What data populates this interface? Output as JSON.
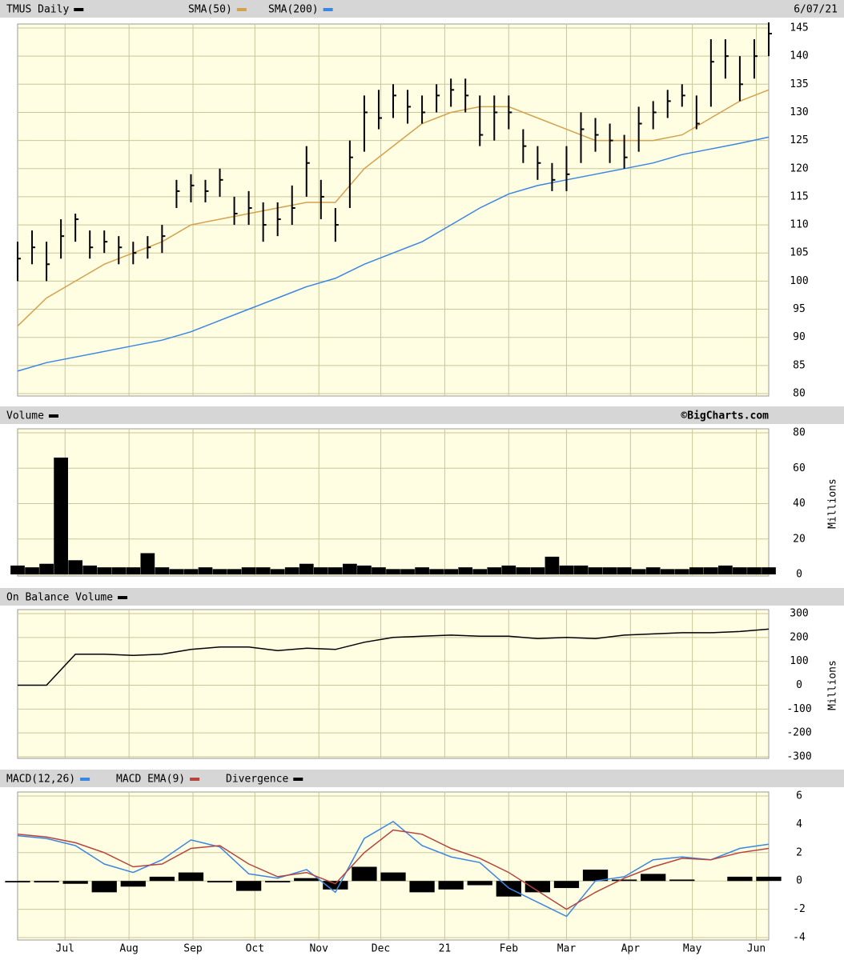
{
  "chart_data": [
    {
      "type": "ohlc",
      "title": "TMUS Daily",
      "date": "6/07/21",
      "color": "#000000",
      "xlim": [
        0,
        364
      ],
      "x": [
        0,
        7,
        14,
        21,
        28,
        35,
        42,
        49,
        56,
        63,
        70,
        77,
        84,
        91,
        98,
        105,
        112,
        119,
        126,
        133,
        140,
        147,
        154,
        161,
        168,
        175,
        182,
        189,
        196,
        203,
        210,
        217,
        224,
        231,
        238,
        245,
        252,
        259,
        266,
        273,
        280,
        287,
        294,
        301,
        308,
        315,
        322,
        329,
        336,
        343,
        350,
        357,
        364
      ],
      "high": [
        107,
        109,
        107,
        111,
        112,
        109,
        109,
        108,
        107,
        108,
        110,
        118,
        119,
        118,
        120,
        115,
        116,
        114,
        114,
        117,
        124,
        118,
        113,
        125,
        133,
        134,
        135,
        134,
        133,
        135,
        136,
        136,
        133,
        133,
        133,
        127,
        124,
        121,
        124,
        130,
        129,
        128,
        126,
        131,
        132,
        134,
        135,
        133,
        143,
        143,
        140,
        143,
        146
      ],
      "low": [
        100,
        103,
        100,
        104,
        107,
        104,
        105,
        103,
        103,
        104,
        105,
        113,
        114,
        114,
        115,
        110,
        110,
        107,
        108,
        110,
        115,
        111,
        107,
        113,
        123,
        127,
        129,
        128,
        128,
        130,
        131,
        130,
        124,
        125,
        127,
        121,
        118,
        116,
        116,
        121,
        123,
        121,
        120,
        123,
        127,
        129,
        131,
        127,
        131,
        136,
        132,
        136,
        140
      ],
      "close": [
        104,
        106,
        103,
        108,
        111,
        106,
        107,
        106,
        105,
        106,
        108,
        116,
        117,
        116,
        118,
        112,
        113,
        110,
        111,
        113,
        121,
        115,
        110,
        122,
        130,
        129,
        133,
        131,
        130,
        133,
        134,
        133,
        126,
        130,
        130,
        124,
        121,
        118,
        119,
        127,
        126,
        125,
        122,
        128,
        130,
        132,
        133,
        128,
        139,
        140,
        135,
        140,
        144
      ],
      "series": [
        {
          "name": "SMA(50)",
          "color": "#d4a24c",
          "x": [
            0,
            14,
            28,
            42,
            56,
            70,
            84,
            98,
            112,
            126,
            140,
            154,
            168,
            182,
            196,
            210,
            224,
            238,
            252,
            266,
            280,
            294,
            308,
            322,
            336,
            350,
            364
          ],
          "values": [
            92,
            97,
            100,
            103,
            105,
            107,
            110,
            111,
            112,
            113,
            114,
            114,
            120,
            124,
            128,
            130,
            131,
            131,
            129,
            127,
            125,
            125,
            125,
            126,
            129,
            132,
            134
          ]
        },
        {
          "name": "SMA(200)",
          "color": "#3a86e0",
          "x": [
            0,
            14,
            28,
            42,
            56,
            70,
            84,
            98,
            112,
            126,
            140,
            154,
            168,
            182,
            196,
            210,
            224,
            238,
            252,
            266,
            280,
            294,
            308,
            322,
            336,
            350,
            364
          ],
          "values": [
            84,
            85.5,
            86.5,
            87.5,
            88.5,
            89.5,
            91,
            93,
            95,
            97,
            99,
            100.5,
            103,
            105,
            107,
            110,
            113,
            115.5,
            117,
            118,
            119,
            120,
            121,
            122.5,
            123.5,
            124.5,
            125.6
          ]
        }
      ],
      "ylim": [
        80,
        145
      ],
      "yticks": [
        80,
        85,
        90,
        95,
        100,
        105,
        110,
        115,
        120,
        125,
        130,
        135,
        140,
        145
      ],
      "grid": true
    },
    {
      "type": "bar",
      "credit": "©BigCharts.com",
      "y_label": "Millions",
      "xlim": [
        0,
        364
      ],
      "x": [
        0,
        7,
        14,
        21,
        28,
        35,
        42,
        49,
        56,
        63,
        70,
        77,
        84,
        91,
        98,
        105,
        112,
        119,
        126,
        133,
        140,
        147,
        154,
        161,
        168,
        175,
        182,
        189,
        196,
        203,
        210,
        217,
        224,
        231,
        238,
        245,
        252,
        259,
        266,
        273,
        280,
        287,
        294,
        301,
        308,
        315,
        322,
        329,
        336,
        343,
        350,
        357,
        364
      ],
      "series": [
        {
          "name": "Volume",
          "color": "#000000",
          "values": [
            5,
            4,
            6,
            66,
            8,
            5,
            4,
            4,
            4,
            12,
            4,
            3,
            3,
            4,
            3,
            3,
            4,
            4,
            3,
            4,
            6,
            4,
            4,
            6,
            5,
            4,
            3,
            3,
            4,
            3,
            3,
            4,
            3,
            4,
            5,
            4,
            4,
            10,
            5,
            5,
            4,
            4,
            4,
            3,
            4,
            3,
            3,
            4,
            4,
            5,
            4,
            4,
            4
          ]
        }
      ],
      "ylim": [
        0,
        80
      ],
      "yticks": [
        0,
        20,
        40,
        60,
        80
      ],
      "grid": true
    },
    {
      "type": "line",
      "y_label": "Millions",
      "xlim": [
        0,
        364
      ],
      "x": [
        0,
        14,
        28,
        42,
        56,
        70,
        84,
        98,
        112,
        126,
        140,
        154,
        168,
        182,
        196,
        210,
        224,
        238,
        252,
        266,
        280,
        294,
        308,
        322,
        336,
        350,
        364
      ],
      "series": [
        {
          "name": "On Balance Volume",
          "color": "#000000",
          "values": [
            0,
            0,
            130,
            130,
            125,
            130,
            150,
            160,
            160,
            145,
            155,
            150,
            180,
            200,
            205,
            210,
            205,
            205,
            195,
            200,
            195,
            210,
            215,
            220,
            220,
            225,
            235
          ]
        }
      ],
      "ylim": [
        -300,
        300
      ],
      "yticks": [
        -300,
        -200,
        -100,
        0,
        100,
        200,
        300
      ],
      "grid": true
    },
    {
      "type": "line",
      "xlim": [
        0,
        364
      ],
      "x": [
        0,
        14,
        28,
        42,
        56,
        70,
        84,
        98,
        112,
        126,
        140,
        154,
        168,
        182,
        196,
        210,
        224,
        238,
        252,
        266,
        280,
        294,
        308,
        322,
        336,
        350,
        364
      ],
      "series": [
        {
          "name": "MACD(12,26)",
          "color": "#3a86e0",
          "mark": "line",
          "values": [
            3.2,
            3,
            2.5,
            1.2,
            0.6,
            1.5,
            2.9,
            2.4,
            0.5,
            0.2,
            0.8,
            -0.8,
            3,
            4.2,
            2.5,
            1.7,
            1.3,
            -0.5,
            -1.5,
            -2.5,
            0,
            0.3,
            1.5,
            1.7,
            1.5,
            2.3,
            2.6
          ]
        },
        {
          "name": "MACD EMA(9)",
          "color": "#b5443c",
          "mark": "line",
          "values": [
            3.3,
            3.1,
            2.7,
            2,
            1,
            1.2,
            2.3,
            2.5,
            1.2,
            0.3,
            0.6,
            -0.2,
            2,
            3.6,
            3.3,
            2.3,
            1.6,
            0.6,
            -0.7,
            -2,
            -0.8,
            0.2,
            1,
            1.6,
            1.5,
            2,
            2.3
          ]
        },
        {
          "name": "Divergence",
          "color": "#000000",
          "mark": "bar",
          "values": [
            -0.1,
            -0.1,
            -0.2,
            -0.8,
            -0.4,
            0.3,
            0.6,
            -0.1,
            -0.7,
            -0.1,
            0.2,
            -0.6,
            1,
            0.6,
            -0.8,
            -0.6,
            -0.3,
            -1.1,
            -0.8,
            -0.5,
            0.8,
            0.1,
            0.5,
            0.1,
            0,
            0.3,
            0.3
          ]
        }
      ],
      "ylim": [
        -4,
        6
      ],
      "yticks": [
        -4,
        -2,
        0,
        2,
        4,
        6
      ],
      "grid": true,
      "xticks": [
        {
          "value": 23,
          "label": "Jul"
        },
        {
          "value": 54,
          "label": "Aug"
        },
        {
          "value": 85,
          "label": "Sep"
        },
        {
          "value": 115,
          "label": "Oct"
        },
        {
          "value": 146,
          "label": "Nov"
        },
        {
          "value": 176,
          "label": "Dec"
        },
        {
          "value": 207,
          "label": "21"
        },
        {
          "value": 238,
          "label": "Feb"
        },
        {
          "value": 266,
          "label": "Mar"
        },
        {
          "value": 297,
          "label": "Apr"
        },
        {
          "value": 327,
          "label": "May"
        },
        {
          "value": 358,
          "label": "Jun"
        }
      ]
    }
  ]
}
